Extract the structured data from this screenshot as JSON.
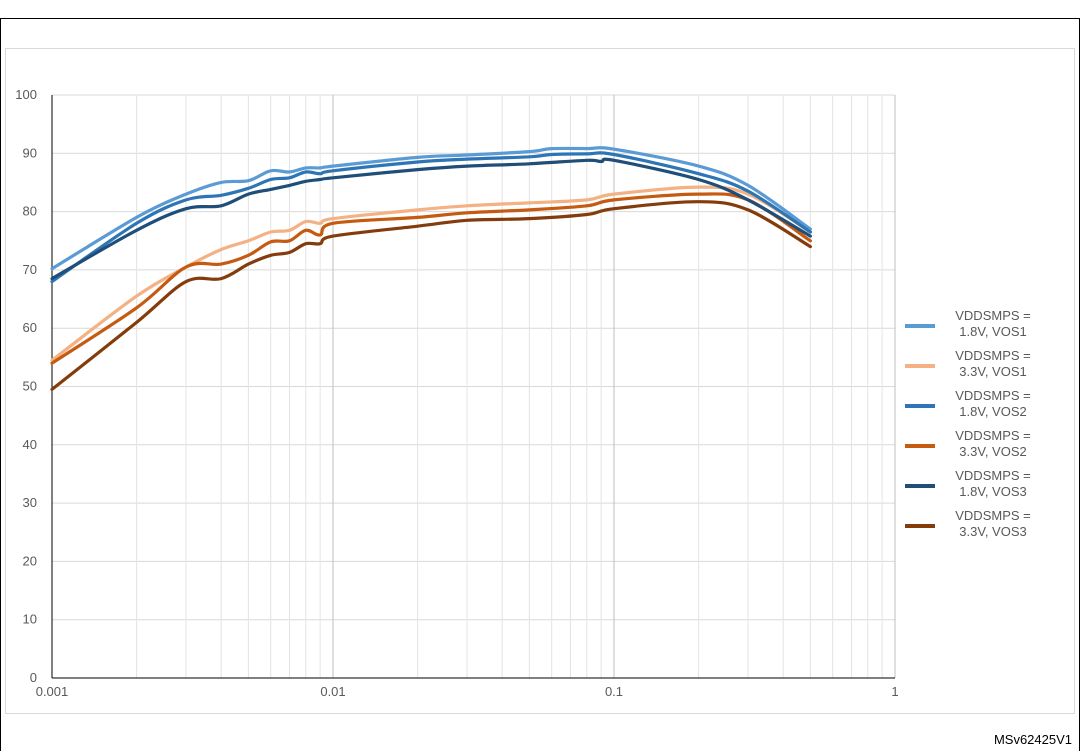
{
  "figure_ref": "MSv62425V1",
  "chart_data": {
    "type": "line",
    "x_scale": "log",
    "xlim": [
      0.001,
      1
    ],
    "ylim": [
      0,
      100
    ],
    "x_ticks": [
      "0.001",
      "0.01",
      "0.1",
      "1"
    ],
    "y_ticks": [
      "0",
      "10",
      "20",
      "30",
      "40",
      "50",
      "60",
      "70",
      "80",
      "90",
      "100"
    ],
    "grid": true,
    "legend_position": "right",
    "series": [
      {
        "name": "VDDSMPS = 1.8V, VOS1",
        "color": "#5b9bd5",
        "x": [
          0.001,
          0.002,
          0.003,
          0.004,
          0.005,
          0.006,
          0.007,
          0.008,
          0.009,
          0.01,
          0.02,
          0.03,
          0.05,
          0.06,
          0.08,
          0.1,
          0.2,
          0.3,
          0.5
        ],
        "y": [
          70.2,
          79.0,
          83.0,
          85.0,
          85.3,
          87.0,
          86.8,
          87.5,
          87.5,
          87.8,
          89.3,
          89.7,
          90.3,
          90.8,
          90.8,
          90.7,
          87.8,
          84.5,
          77.0
        ]
      },
      {
        "name": "VDDSMPS = 3.3V, VOS1",
        "color": "#f4b183",
        "x": [
          0.001,
          0.002,
          0.003,
          0.004,
          0.005,
          0.006,
          0.007,
          0.008,
          0.009,
          0.01,
          0.02,
          0.03,
          0.05,
          0.08,
          0.1,
          0.2,
          0.3,
          0.5
        ],
        "y": [
          54.5,
          65.5,
          70.5,
          73.5,
          75.0,
          76.5,
          76.8,
          78.3,
          78.0,
          78.8,
          80.3,
          81.0,
          81.5,
          82.0,
          83.0,
          84.2,
          83.0,
          76.5
        ]
      },
      {
        "name": "VDDSMPS = 1.8V, VOS2",
        "color": "#2e75b6",
        "x": [
          0.001,
          0.002,
          0.003,
          0.004,
          0.005,
          0.006,
          0.007,
          0.008,
          0.009,
          0.01,
          0.02,
          0.03,
          0.05,
          0.06,
          0.08,
          0.1,
          0.2,
          0.3,
          0.5
        ],
        "y": [
          68.0,
          78.0,
          82.0,
          82.8,
          84.0,
          85.5,
          85.8,
          86.8,
          86.5,
          87.0,
          88.5,
          89.0,
          89.4,
          89.8,
          89.9,
          89.8,
          86.5,
          83.5,
          76.5
        ]
      },
      {
        "name": "VDDSMPS = 3.3V, VOS2",
        "color": "#c55a11",
        "x": [
          0.001,
          0.002,
          0.003,
          0.004,
          0.005,
          0.006,
          0.007,
          0.008,
          0.009,
          0.01,
          0.02,
          0.03,
          0.05,
          0.08,
          0.1,
          0.2,
          0.3,
          0.5
        ],
        "y": [
          54.0,
          63.5,
          70.5,
          71.0,
          72.5,
          74.8,
          75.0,
          76.8,
          76.0,
          78.0,
          79.0,
          79.8,
          80.3,
          81.0,
          82.0,
          83.0,
          82.0,
          75.0
        ]
      },
      {
        "name": "VDDSMPS = 1.8V, VOS3",
        "color": "#1f4e79",
        "x": [
          0.001,
          0.002,
          0.003,
          0.004,
          0.005,
          0.006,
          0.007,
          0.008,
          0.009,
          0.01,
          0.02,
          0.03,
          0.05,
          0.08,
          0.09,
          0.1,
          0.2,
          0.3,
          0.5
        ],
        "y": [
          68.5,
          76.8,
          80.5,
          81.0,
          83.0,
          83.8,
          84.5,
          85.2,
          85.5,
          85.8,
          87.2,
          87.8,
          88.2,
          88.8,
          88.6,
          88.8,
          85.5,
          82.0,
          75.8
        ]
      },
      {
        "name": "VDDSMPS = 3.3V, VOS3",
        "color": "#843c0c",
        "x": [
          0.001,
          0.002,
          0.003,
          0.004,
          0.005,
          0.006,
          0.007,
          0.008,
          0.009,
          0.01,
          0.02,
          0.03,
          0.05,
          0.08,
          0.1,
          0.2,
          0.3,
          0.5
        ],
        "y": [
          49.5,
          61.0,
          68.0,
          68.5,
          71.0,
          72.5,
          73.0,
          74.5,
          74.5,
          75.8,
          77.5,
          78.5,
          78.8,
          79.5,
          80.5,
          81.7,
          80.3,
          74.0
        ]
      }
    ]
  }
}
